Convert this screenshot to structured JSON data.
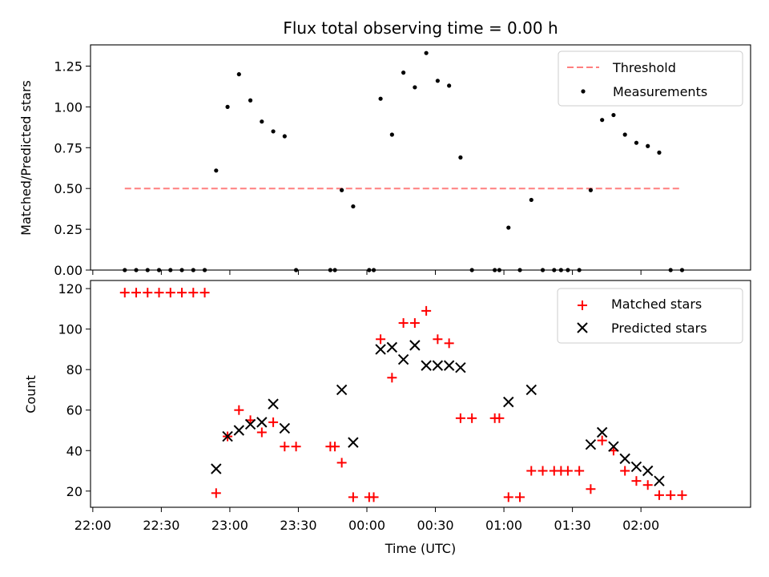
{
  "chart_data": [
    {
      "type": "scatter",
      "title": "Flux total observing time = 0.00 h",
      "ylabel": "Matched/Predicted stars",
      "xlabel": "",
      "xlim": [
        "21:59",
        "02:48"
      ],
      "ylim": [
        0,
        1.38
      ],
      "yticks": [
        0.0,
        0.25,
        0.5,
        0.75,
        1.0,
        1.25
      ],
      "ytick_labels": [
        "0.00",
        "0.25",
        "0.50",
        "0.75",
        "1.00",
        "1.25"
      ],
      "threshold": {
        "name": "Threshold",
        "value": 0.5,
        "x": [
          "22:14",
          "02:17"
        ],
        "color": "#ff7f7f"
      },
      "series": [
        {
          "name": "Measurements",
          "color": "#000000",
          "points": [
            [
              "22:14",
              0
            ],
            [
              "22:19",
              0
            ],
            [
              "22:24",
              0
            ],
            [
              "22:29",
              0
            ],
            [
              "22:34",
              0
            ],
            [
              "22:39",
              0
            ],
            [
              "22:44",
              0
            ],
            [
              "22:49",
              0
            ],
            [
              "22:54",
              0.61
            ],
            [
              "22:59",
              1.0
            ],
            [
              "23:04",
              1.2
            ],
            [
              "23:09",
              1.04
            ],
            [
              "23:14",
              0.91
            ],
            [
              "23:19",
              0.85
            ],
            [
              "23:24",
              0.82
            ],
            [
              "23:29",
              0
            ],
            [
              "23:44",
              0
            ],
            [
              "23:46",
              0
            ],
            [
              "23:49",
              0.49
            ],
            [
              "23:54",
              0.39
            ],
            [
              "00:01",
              0
            ],
            [
              "00:03",
              0
            ],
            [
              "00:06",
              1.05
            ],
            [
              "00:11",
              0.83
            ],
            [
              "00:16",
              1.21
            ],
            [
              "00:21",
              1.12
            ],
            [
              "00:26",
              1.33
            ],
            [
              "00:31",
              1.16
            ],
            [
              "00:36",
              1.13
            ],
            [
              "00:41",
              0.69
            ],
            [
              "00:46",
              0
            ],
            [
              "00:56",
              0
            ],
            [
              "00:58",
              0
            ],
            [
              "01:02",
              0.26
            ],
            [
              "01:07",
              0
            ],
            [
              "01:12",
              0.43
            ],
            [
              "01:17",
              0
            ],
            [
              "01:22",
              0
            ],
            [
              "01:25",
              0
            ],
            [
              "01:28",
              0
            ],
            [
              "01:33",
              0
            ],
            [
              "01:38",
              0.49
            ],
            [
              "01:43",
              0.92
            ],
            [
              "01:48",
              0.95
            ],
            [
              "01:53",
              0.83
            ],
            [
              "01:58",
              0.78
            ],
            [
              "02:03",
              0.76
            ],
            [
              "02:08",
              0.72
            ],
            [
              "02:13",
              0
            ],
            [
              "02:18",
              0
            ]
          ]
        }
      ],
      "legend": {
        "position": "top-right"
      }
    },
    {
      "type": "scatter",
      "title": "",
      "ylabel": "Count",
      "xlabel": "Time (UTC)",
      "xlim": [
        "21:59",
        "02:48"
      ],
      "ylim": [
        12,
        124
      ],
      "yticks": [
        20,
        40,
        60,
        80,
        100,
        120
      ],
      "xticks": [
        "22:00",
        "22:30",
        "23:00",
        "23:30",
        "00:00",
        "00:30",
        "01:00",
        "01:30",
        "02:00"
      ],
      "series": [
        {
          "name": "Matched stars",
          "marker": "plus",
          "color": "#ff0000",
          "points": [
            [
              "22:14",
              118
            ],
            [
              "22:19",
              118
            ],
            [
              "22:24",
              118
            ],
            [
              "22:29",
              118
            ],
            [
              "22:34",
              118
            ],
            [
              "22:39",
              118
            ],
            [
              "22:44",
              118
            ],
            [
              "22:49",
              118
            ],
            [
              "22:54",
              19
            ],
            [
              "22:59",
              47
            ],
            [
              "23:04",
              60
            ],
            [
              "23:09",
              55
            ],
            [
              "23:14",
              49
            ],
            [
              "23:19",
              54
            ],
            [
              "23:24",
              42
            ],
            [
              "23:29",
              42
            ],
            [
              "23:44",
              42
            ],
            [
              "23:46",
              42
            ],
            [
              "23:49",
              34
            ],
            [
              "23:54",
              17
            ],
            [
              "00:01",
              17
            ],
            [
              "00:03",
              17
            ],
            [
              "00:06",
              95
            ],
            [
              "00:11",
              76
            ],
            [
              "00:16",
              103
            ],
            [
              "00:21",
              103
            ],
            [
              "00:26",
              109
            ],
            [
              "00:31",
              95
            ],
            [
              "00:36",
              93
            ],
            [
              "00:41",
              56
            ],
            [
              "00:46",
              56
            ],
            [
              "00:56",
              56
            ],
            [
              "00:58",
              56
            ],
            [
              "01:02",
              17
            ],
            [
              "01:07",
              17
            ],
            [
              "01:12",
              30
            ],
            [
              "01:17",
              30
            ],
            [
              "01:22",
              30
            ],
            [
              "01:25",
              30
            ],
            [
              "01:28",
              30
            ],
            [
              "01:33",
              30
            ],
            [
              "01:38",
              21
            ],
            [
              "01:43",
              45
            ],
            [
              "01:48",
              40
            ],
            [
              "01:53",
              30
            ],
            [
              "01:58",
              25
            ],
            [
              "02:03",
              23
            ],
            [
              "02:08",
              18
            ],
            [
              "02:13",
              18
            ],
            [
              "02:18",
              18
            ]
          ]
        },
        {
          "name": "Predicted stars",
          "marker": "x",
          "color": "#000000",
          "points": [
            [
              "22:54",
              31
            ],
            [
              "22:59",
              47
            ],
            [
              "23:04",
              50
            ],
            [
              "23:09",
              53
            ],
            [
              "23:14",
              54
            ],
            [
              "23:19",
              63
            ],
            [
              "23:24",
              51
            ],
            [
              "23:49",
              70
            ],
            [
              "23:54",
              44
            ],
            [
              "00:06",
              90
            ],
            [
              "00:11",
              91
            ],
            [
              "00:16",
              85
            ],
            [
              "00:21",
              92
            ],
            [
              "00:26",
              82
            ],
            [
              "00:31",
              82
            ],
            [
              "00:36",
              82
            ],
            [
              "00:41",
              81
            ],
            [
              "01:02",
              64
            ],
            [
              "01:12",
              70
            ],
            [
              "01:38",
              43
            ],
            [
              "01:43",
              49
            ],
            [
              "01:48",
              42
            ],
            [
              "01:53",
              36
            ],
            [
              "01:58",
              32
            ],
            [
              "02:03",
              30
            ],
            [
              "02:08",
              25
            ]
          ]
        }
      ],
      "legend": {
        "position": "top-right"
      }
    }
  ]
}
